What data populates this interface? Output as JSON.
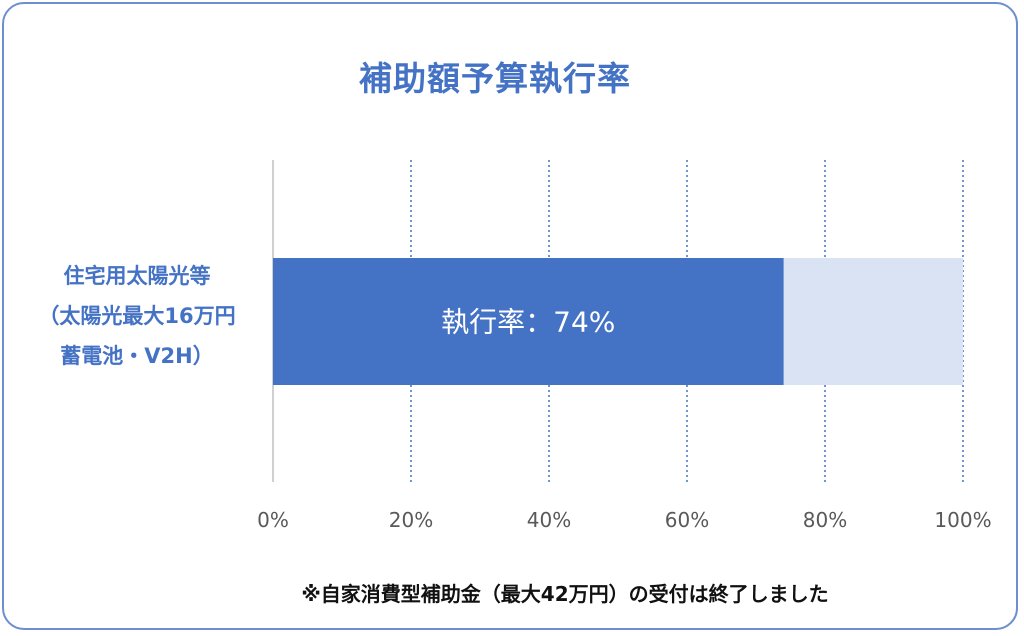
{
  "chart_data": {
    "type": "bar",
    "orientation": "horizontal",
    "title": "補助額予算執行率",
    "categories": [
      "住宅用太陽光等（太陽光最大16万円 蓄電池・V2H）"
    ],
    "category_lines": [
      "住宅用太陽光等",
      "（太陽光最大16万円",
      "蓄電池・V2H）"
    ],
    "series": [
      {
        "name": "執行率",
        "values": [
          74
        ],
        "color": "#4472c4"
      }
    ],
    "background_values": [
      100
    ],
    "background_color": "#dae3f3",
    "data_label": "執行率：74%",
    "x_ticks": [
      "0%",
      "20%",
      "40%",
      "60%",
      "80%",
      "100%"
    ],
    "xlim": [
      0,
      100
    ],
    "grid": true,
    "xlabel": "",
    "ylabel": ""
  },
  "footnote": "※自家消費型補助金（最大42万円）の受付は終了しました"
}
